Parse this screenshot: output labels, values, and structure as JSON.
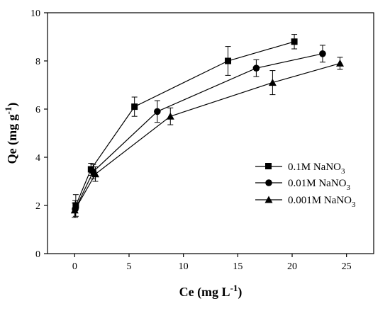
{
  "chart_data": {
    "type": "scatter",
    "title": "",
    "xlabel": {
      "main": "Ce (mg L",
      "sup": "-1",
      "close": ")"
    },
    "ylabel": {
      "main": "Qe (mg g",
      "sup": "-1",
      "close": ")"
    },
    "xlim": [
      -2.5,
      27.5
    ],
    "ylim": [
      0,
      10
    ],
    "xticks": [
      0,
      5,
      10,
      15,
      20,
      25
    ],
    "yticks": [
      0,
      2,
      4,
      6,
      8,
      10
    ],
    "x_tick_labels": [
      "0",
      "5",
      "10",
      "15",
      "20",
      "25"
    ],
    "y_tick_labels": [
      "0",
      "2",
      "4",
      "6",
      "8",
      "10"
    ],
    "grid": false,
    "legend_position": "center-right",
    "series": [
      {
        "name": "0.1M   NaNO3",
        "label": {
          "main": "0.1M   NaNO",
          "sub": "3"
        },
        "marker": "square",
        "x": [
          0.1,
          1.5,
          5.5,
          14.1,
          20.2
        ],
        "y": [
          2.0,
          3.5,
          6.1,
          8.0,
          8.8
        ],
        "err": [
          0.45,
          0.25,
          0.4,
          0.6,
          0.3
        ]
      },
      {
        "name": "0.01M  NaNO3",
        "label": {
          "main": "0.01M  NaNO",
          "sub": "3"
        },
        "marker": "circle",
        "x": [
          0.05,
          1.7,
          7.6,
          16.7,
          22.8
        ],
        "y": [
          1.85,
          3.4,
          5.9,
          7.7,
          8.3
        ],
        "err": [
          0.35,
          0.3,
          0.45,
          0.35,
          0.35
        ]
      },
      {
        "name": "0.001M NaNO3",
        "label": {
          "main": "0.001M NaNO",
          "sub": "3"
        },
        "marker": "triangle",
        "x": [
          0.0,
          1.9,
          8.8,
          18.2,
          24.4
        ],
        "y": [
          1.8,
          3.3,
          5.7,
          7.1,
          7.9
        ],
        "err": [
          0.3,
          0.3,
          0.35,
          0.5,
          0.25
        ]
      }
    ]
  }
}
